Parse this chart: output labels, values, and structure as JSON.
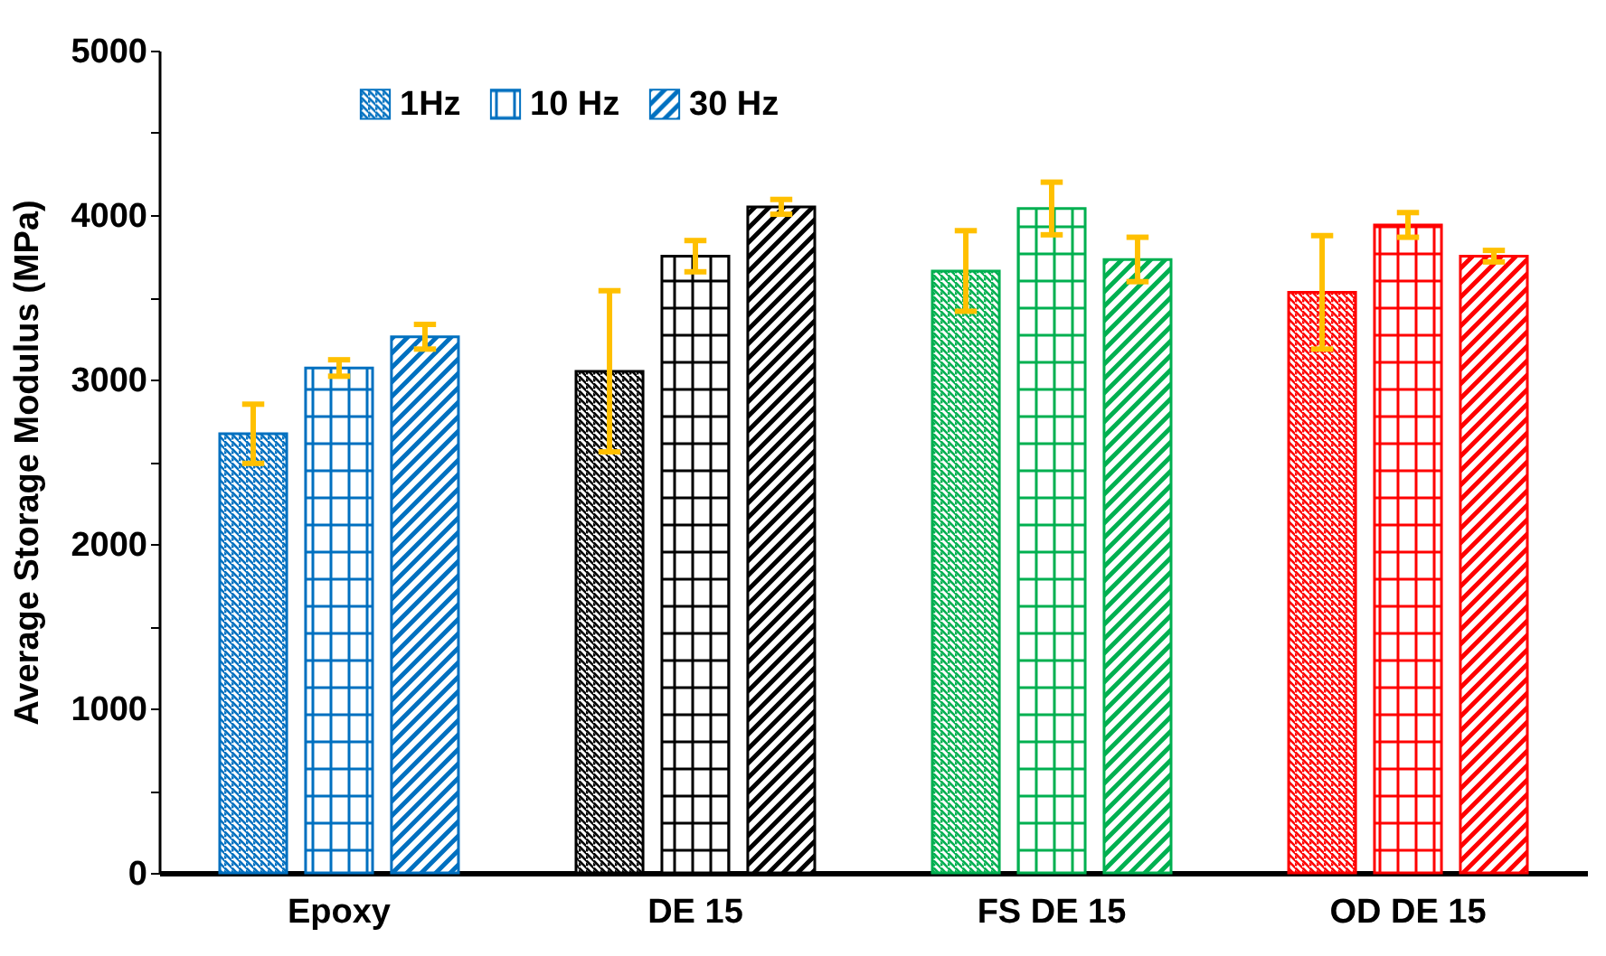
{
  "chart_data": {
    "type": "bar",
    "ylabel": "Average Storage Modulus (MPa)",
    "categories": [
      "Epoxy",
      "DE 15",
      "FS DE 15",
      "OD DE 15"
    ],
    "series": [
      {
        "name": "1Hz",
        "color": "#0070c0",
        "colors": [
          "#0070c0",
          "#000000",
          "#00b050",
          "#ff0000"
        ],
        "values": [
          2670,
          3050,
          3660,
          3530
        ],
        "errors": [
          180,
          490,
          245,
          345
        ]
      },
      {
        "name": "10 Hz",
        "color": "#0070c0",
        "colors": [
          "#0070c0",
          "#000000",
          "#00b050",
          "#ff0000"
        ],
        "values": [
          3070,
          3750,
          4040,
          3940
        ],
        "errors": [
          50,
          95,
          160,
          75
        ]
      },
      {
        "name": "30 Hz",
        "color": "#0070c0",
        "colors": [
          "#0070c0",
          "#000000",
          "#00b050",
          "#ff0000"
        ],
        "values": [
          3260,
          4050,
          3730,
          3750
        ],
        "errors": [
          75,
          45,
          135,
          35
        ]
      }
    ],
    "ylim": [
      0,
      5000
    ],
    "yticks": [
      0,
      {
        "value": 500,
        "label": null
      },
      1000,
      {
        "value": 1500,
        "label": null
      },
      2000,
      {
        "value": 2500,
        "label": null
      },
      3000,
      {
        "value": 3500,
        "label": null
      },
      4000,
      {
        "value": 4500,
        "label": null
      },
      5000
    ],
    "legend": "top left",
    "grid": false
  }
}
